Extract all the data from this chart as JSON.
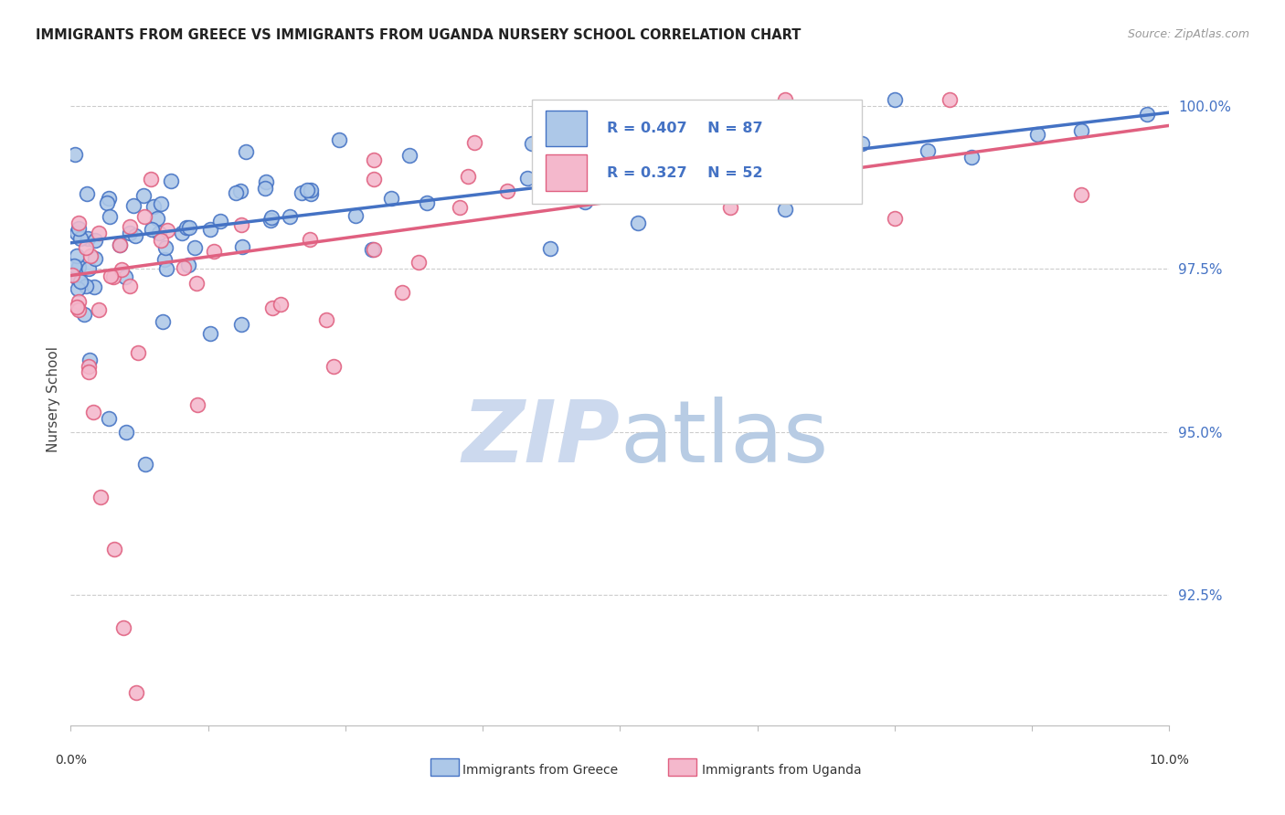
{
  "title": "IMMIGRANTS FROM GREECE VS IMMIGRANTS FROM UGANDA NURSERY SCHOOL CORRELATION CHART",
  "source": "Source: ZipAtlas.com",
  "ylabel": "Nursery School",
  "ytick_labels": [
    "100.0%",
    "97.5%",
    "95.0%",
    "92.5%"
  ],
  "ytick_values": [
    1.0,
    0.975,
    0.95,
    0.925
  ],
  "legend_r_greece": "R = 0.407",
  "legend_n_greece": "N = 87",
  "legend_r_uganda": "R = 0.327",
  "legend_n_uganda": "N = 52",
  "legend_label_greece": "Immigrants from Greece",
  "legend_label_uganda": "Immigrants from Uganda",
  "color_greece_fill": "#adc8e8",
  "color_uganda_fill": "#f4b8cc",
  "color_line_greece": "#4472c4",
  "color_line_uganda": "#e06080",
  "color_title": "#222222",
  "color_source": "#999999",
  "color_ytick": "#4472c4",
  "watermark_zip_color": "#ccd9ee",
  "watermark_atlas_color": "#b8cce4",
  "xmin": 0.0,
  "xmax": 0.1,
  "ymin": 0.905,
  "ymax": 1.005,
  "greece_line_x0": 0.0,
  "greece_line_x1": 0.1,
  "greece_line_y0": 0.979,
  "greece_line_y1": 0.999,
  "uganda_line_x0": 0.0,
  "uganda_line_x1": 0.1,
  "uganda_line_y0": 0.974,
  "uganda_line_y1": 0.997
}
